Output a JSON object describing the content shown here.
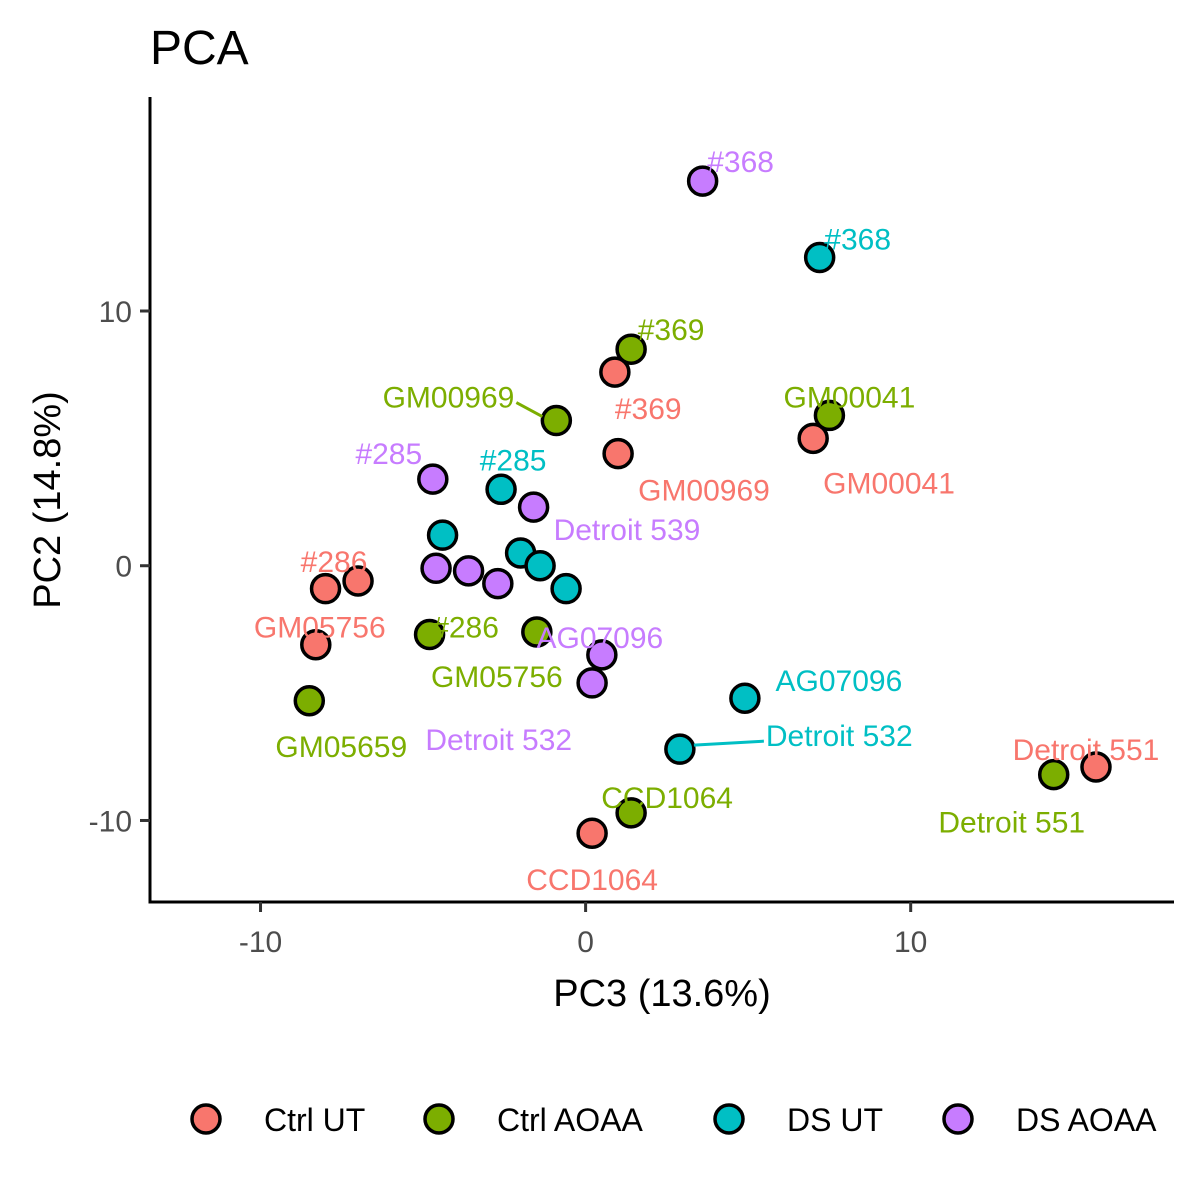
{
  "chart_data": {
    "type": "scatter",
    "title": "PCA",
    "xlabel": "PC3 (13.6%)",
    "ylabel": "PC2 (14.8%)",
    "xlim": [
      -13.4,
      18.1
    ],
    "ylim": [
      -13.2,
      18.4
    ],
    "x_ticks": [
      -10,
      0,
      10
    ],
    "y_ticks": [
      -10,
      0,
      10
    ],
    "x_tick_labels": [
      "-10",
      "0",
      "10"
    ],
    "y_tick_labels": [
      "-10",
      "0",
      "10"
    ],
    "grid": false,
    "legend_position": "bottom",
    "series": [
      {
        "name": "Ctrl UT",
        "color": "#F8766D",
        "points": [
          {
            "x": 0.9,
            "y": 7.6,
            "label": "#369"
          },
          {
            "x": 1.0,
            "y": 4.4,
            "label": "GM00969"
          },
          {
            "x": 7.0,
            "y": 5.0,
            "label": "GM00041"
          },
          {
            "x": -8.0,
            "y": -0.9,
            "label": ""
          },
          {
            "x": -7.0,
            "y": -0.6,
            "label": "#286"
          },
          {
            "x": -8.3,
            "y": -3.1,
            "label": "GM05756"
          },
          {
            "x": 0.2,
            "y": -10.5,
            "label": "CCD1064"
          },
          {
            "x": 15.7,
            "y": -7.9,
            "label": "Detroit 551"
          }
        ]
      },
      {
        "name": "Ctrl AOAA",
        "color": "#7CAE00",
        "points": [
          {
            "x": 1.4,
            "y": 8.5,
            "label": "#369"
          },
          {
            "x": -0.9,
            "y": 5.7,
            "label": "GM00969"
          },
          {
            "x": 7.5,
            "y": 5.9,
            "label": "GM00041"
          },
          {
            "x": -4.8,
            "y": -2.7,
            "label": "#286"
          },
          {
            "x": -1.5,
            "y": -2.6,
            "label": "GM05756"
          },
          {
            "x": -8.5,
            "y": -5.3,
            "label": "GM05659"
          },
          {
            "x": 1.4,
            "y": -9.7,
            "label": "CCD1064"
          },
          {
            "x": 14.4,
            "y": -8.2,
            "label": "Detroit 551"
          }
        ]
      },
      {
        "name": "DS UT",
        "color": "#00BFC4",
        "points": [
          {
            "x": 7.2,
            "y": 12.1,
            "label": "#368"
          },
          {
            "x": -2.6,
            "y": 3.0,
            "label": "#285"
          },
          {
            "x": -4.4,
            "y": 1.2,
            "label": ""
          },
          {
            "x": -2.0,
            "y": 0.5,
            "label": ""
          },
          {
            "x": -1.4,
            "y": 0.0,
            "label": ""
          },
          {
            "x": -0.6,
            "y": -0.9,
            "label": ""
          },
          {
            "x": 4.9,
            "y": -5.2,
            "label": "AG07096"
          },
          {
            "x": 2.9,
            "y": -7.2,
            "label": "Detroit 532"
          }
        ]
      },
      {
        "name": "DS AOAA",
        "color": "#C77CFF",
        "points": [
          {
            "x": 3.6,
            "y": 15.1,
            "label": "#368"
          },
          {
            "x": -4.7,
            "y": 3.4,
            "label": "#285"
          },
          {
            "x": -1.6,
            "y": 2.3,
            "label": "Detroit 539"
          },
          {
            "x": -4.6,
            "y": -0.1,
            "label": ""
          },
          {
            "x": -3.6,
            "y": -0.2,
            "label": ""
          },
          {
            "x": -2.7,
            "y": -0.7,
            "label": ""
          },
          {
            "x": 0.5,
            "y": -3.5,
            "label": "AG07096"
          },
          {
            "x": 0.2,
            "y": -4.6,
            "label": "Detroit 532"
          }
        ]
      }
    ]
  }
}
